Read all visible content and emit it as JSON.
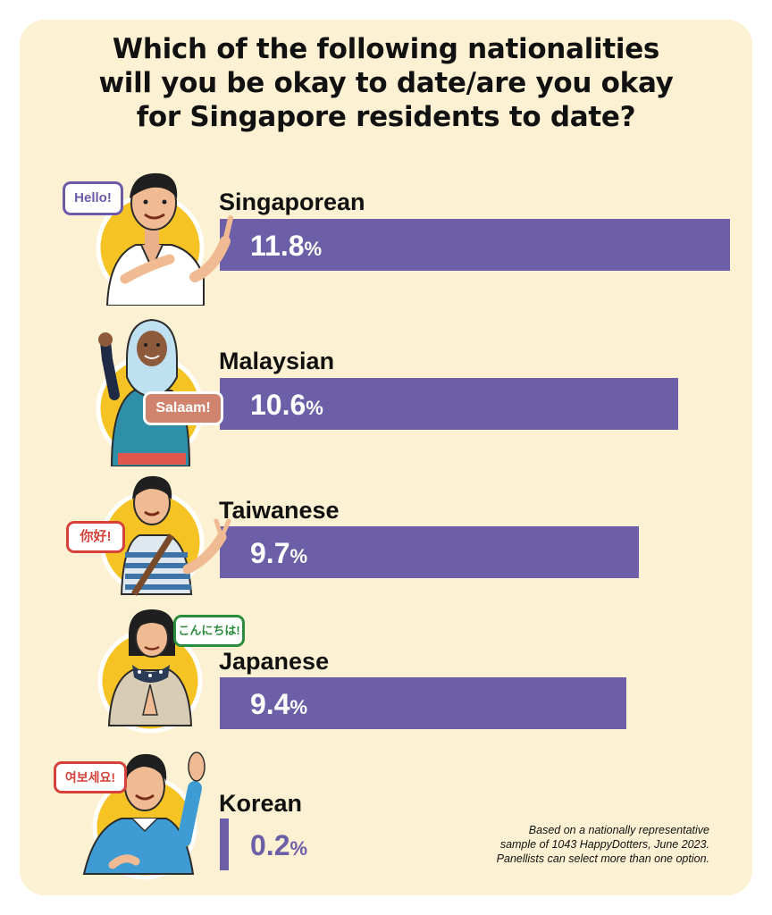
{
  "title_lines": [
    "Which of the following nationalities",
    "will you be okay to date/are you okay",
    "for Singapore residents to date?"
  ],
  "colors": {
    "bar": "#6c5fa8",
    "background": "#fdf1d3",
    "circle": "#f6c324",
    "value_on_bar": "#ffffff",
    "value_off_bar": "#6c5fa8"
  },
  "chart_data": {
    "type": "bar",
    "orientation": "horizontal",
    "categories": [
      "Singaporean",
      "Malaysian",
      "Taiwanese",
      "Japanese",
      "Korean"
    ],
    "values": [
      11.8,
      10.6,
      9.7,
      9.4,
      0.2
    ],
    "value_labels": [
      "11.8",
      "10.6",
      "9.7",
      "9.4",
      "0.2"
    ],
    "unit": "%",
    "xlim": [
      0,
      11.8
    ]
  },
  "greetings": [
    "Hello!",
    "Salaam!",
    "你好!",
    "こんにちは!",
    "여보세요!"
  ],
  "footnote_lines": [
    "Based on a nationally representative",
    "sample of 1043 HappyDotters, June 2023.",
    "Panellists can select more than one option."
  ]
}
